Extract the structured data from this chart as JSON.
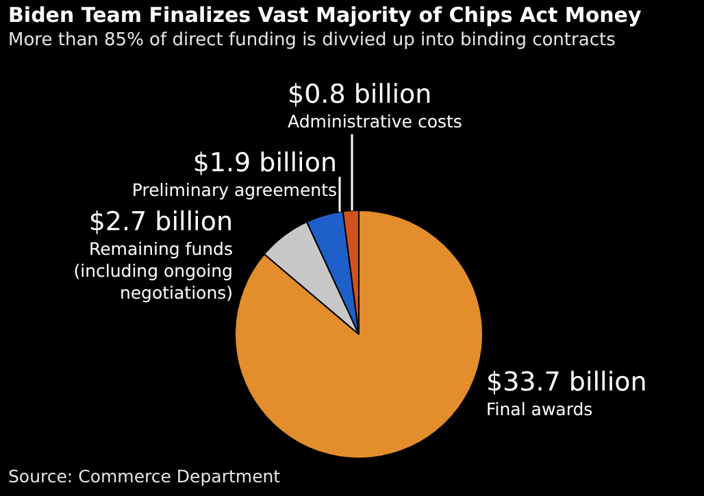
{
  "chart_data": {
    "type": "pie",
    "title": "Biden Team Finalizes Vast Majority of Chips Act Money",
    "subtitle": "More than 85% of direct funding is divvied up into binding contracts",
    "categories": [
      "Final awards",
      "Remaining funds (including ongoing negotiations)",
      "Preliminary agreements",
      "Administrative costs"
    ],
    "values": [
      33.7,
      2.7,
      1.9,
      0.8
    ],
    "colors": [
      "#e38d2c",
      "#c8c8c8",
      "#1f5fc9",
      "#d2521e"
    ],
    "value_labels": [
      "$33.7 billion",
      "$2.7 billion",
      "$1.9 billion",
      "$0.8 billion"
    ],
    "annotations": [
      "Source: Commerce Department"
    ]
  }
}
